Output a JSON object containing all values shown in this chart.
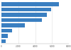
{
  "values": [
    6800,
    5900,
    5400,
    4800,
    2800,
    1300,
    750,
    500
  ],
  "bar_color": "#3a7fc1",
  "background_color": "#ffffff",
  "grid_color": "#e0e0e0",
  "xlim": [
    0,
    8000
  ],
  "figsize": [
    1.0,
    0.71
  ],
  "dpi": 100
}
